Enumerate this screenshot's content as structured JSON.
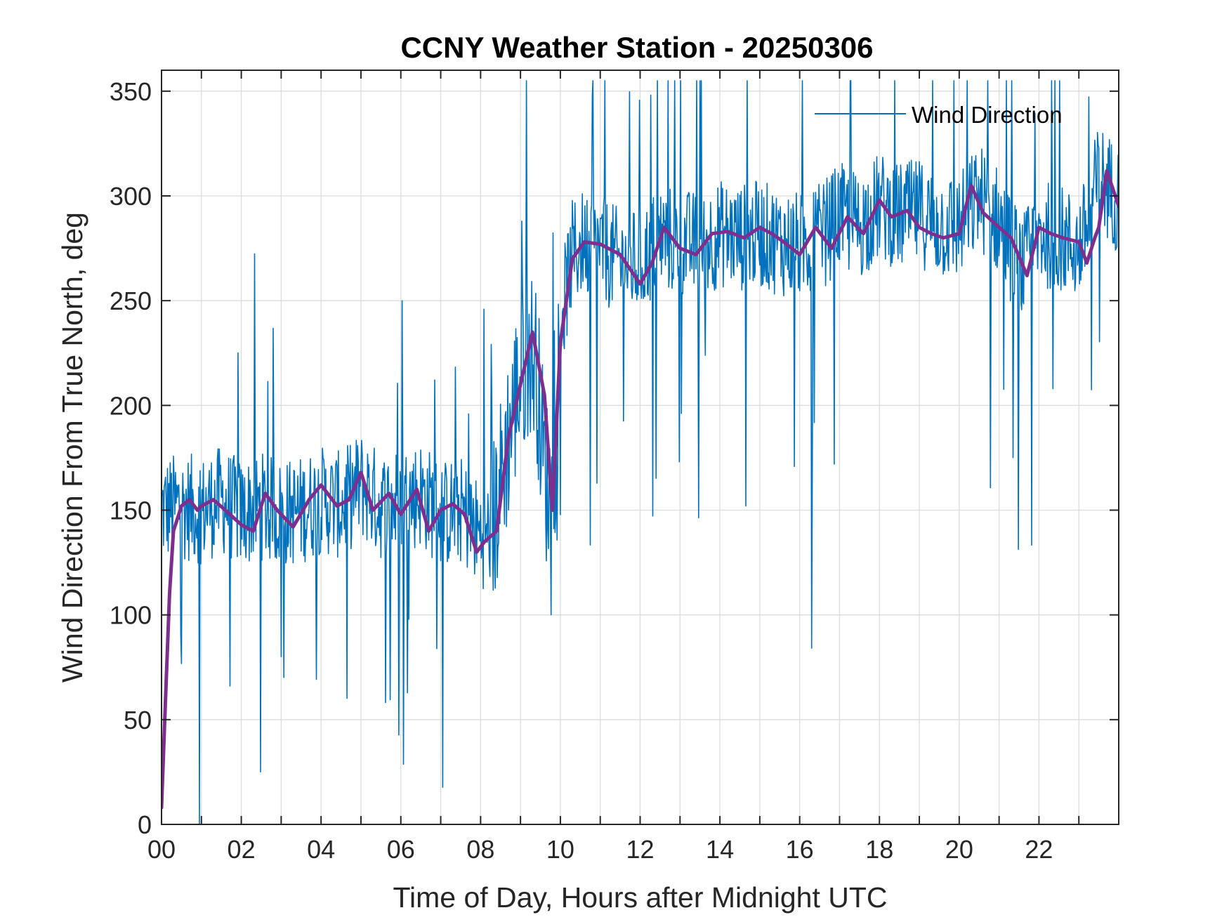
{
  "chart_data": {
    "type": "line",
    "title": "CCNY Weather Station - 20250306",
    "xlabel": "Time of Day, Hours after Midnight UTC",
    "ylabel": "Wind Direction From True North, deg",
    "xlim": [
      0,
      24
    ],
    "ylim": [
      0,
      360
    ],
    "xticks": [
      0,
      2,
      4,
      6,
      8,
      10,
      12,
      14,
      16,
      18,
      20,
      22
    ],
    "xtick_labels": [
      "00",
      "02",
      "04",
      "06",
      "08",
      "10",
      "12",
      "14",
      "16",
      "18",
      "20",
      "22"
    ],
    "yticks": [
      0,
      50,
      100,
      150,
      200,
      250,
      300,
      350
    ],
    "ytick_labels": [
      "0",
      "50",
      "100",
      "150",
      "200",
      "250",
      "300",
      "350"
    ],
    "grid": true,
    "legend": {
      "position": "top-right",
      "entries": [
        "Wind Direction"
      ]
    },
    "colors": {
      "raw": "#0072BD",
      "smoothed": "#7E2F8E"
    },
    "series": [
      {
        "name": "Wind Direction",
        "style": "thin-noisy",
        "x": [
          0,
          0.5,
          1,
          1.5,
          2,
          2.5,
          3,
          3.5,
          4,
          4.5,
          5,
          5.5,
          6,
          6.5,
          7,
          7.5,
          8,
          8.3,
          8.6,
          8.9,
          9.2,
          9.4,
          9.6,
          9.8,
          10,
          10.3,
          10.6,
          11,
          11.5,
          12,
          12.5,
          13,
          13.5,
          14,
          14.5,
          15,
          15.5,
          16,
          16.5,
          17,
          17.5,
          18,
          18.5,
          19,
          19.5,
          20,
          20.5,
          21,
          21.3,
          21.6,
          22,
          22.5,
          23,
          23.2,
          23.5,
          24
        ],
        "values": [
          150,
          152,
          150,
          155,
          148,
          152,
          148,
          150,
          155,
          152,
          162,
          152,
          154,
          158,
          148,
          150,
          138,
          140,
          175,
          205,
          228,
          218,
          170,
          150,
          240,
          272,
          278,
          275,
          268,
          268,
          280,
          278,
          276,
          282,
          280,
          282,
          278,
          276,
          280,
          290,
          286,
          295,
          290,
          292,
          286,
          285,
          300,
          288,
          275,
          265,
          282,
          280,
          275,
          285,
          310,
          298
        ]
      },
      {
        "name": "",
        "style": "smoothed",
        "x": [
          0,
          0.1,
          0.2,
          0.3,
          0.5,
          0.7,
          0.9,
          1,
          1.3,
          1.6,
          2,
          2.3,
          2.6,
          2.9,
          3.3,
          3.7,
          4,
          4.4,
          4.7,
          5,
          5.3,
          5.7,
          6,
          6.4,
          6.7,
          7,
          7.3,
          7.6,
          7.9,
          8.1,
          8.4,
          8.7,
          9,
          9.3,
          9.6,
          9.8,
          10,
          10.3,
          10.6,
          11,
          11.5,
          12,
          12.3,
          12.6,
          13,
          13.4,
          13.8,
          14.2,
          14.6,
          15,
          15.3,
          15.6,
          16,
          16.4,
          16.8,
          17.2,
          17.6,
          18,
          18.3,
          18.7,
          19,
          19.3,
          19.6,
          20,
          20.3,
          20.6,
          21,
          21.3,
          21.7,
          22,
          22.3,
          22.6,
          23,
          23.2,
          23.4,
          23.5,
          23.7,
          24
        ],
        "values": [
          8,
          60,
          110,
          140,
          152,
          155,
          150,
          152,
          155,
          150,
          143,
          140,
          158,
          150,
          142,
          155,
          162,
          152,
          155,
          168,
          150,
          158,
          148,
          160,
          140,
          150,
          153,
          148,
          130,
          135,
          140,
          185,
          210,
          235,
          205,
          150,
          230,
          270,
          278,
          277,
          272,
          258,
          268,
          285,
          275,
          272,
          282,
          283,
          280,
          285,
          282,
          278,
          272,
          285,
          275,
          290,
          282,
          298,
          290,
          293,
          285,
          282,
          280,
          282,
          305,
          292,
          285,
          280,
          262,
          285,
          282,
          280,
          278,
          268,
          280,
          285,
          312,
          295
        ]
      }
    ]
  }
}
